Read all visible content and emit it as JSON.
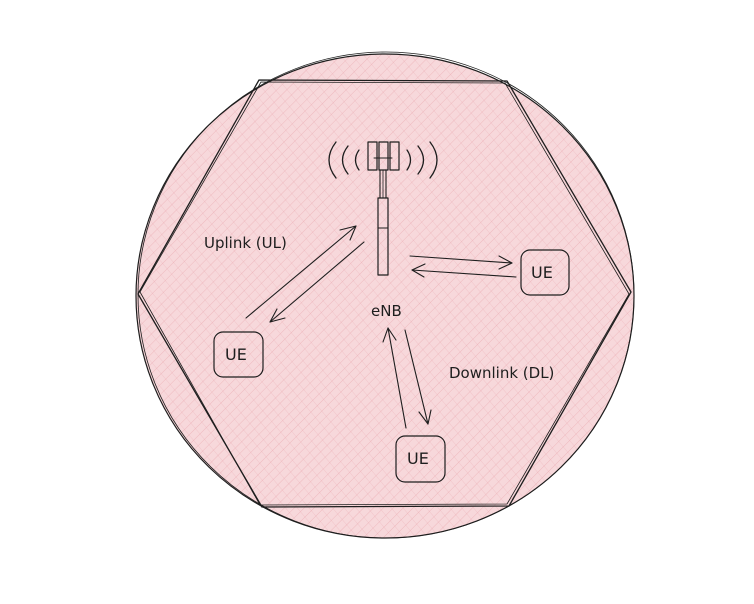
{
  "diagram": {
    "fill_color": "#f7d8db",
    "hatch_color": "#e8a0a6",
    "stroke_color": "#1e1e1e",
    "station_label": "eNB",
    "uplink_label": "Uplink (UL)",
    "downlink_label": "Downlink (DL)",
    "ue_nodes": [
      {
        "label": "UE"
      },
      {
        "label": "UE"
      },
      {
        "label": "UE"
      }
    ]
  }
}
